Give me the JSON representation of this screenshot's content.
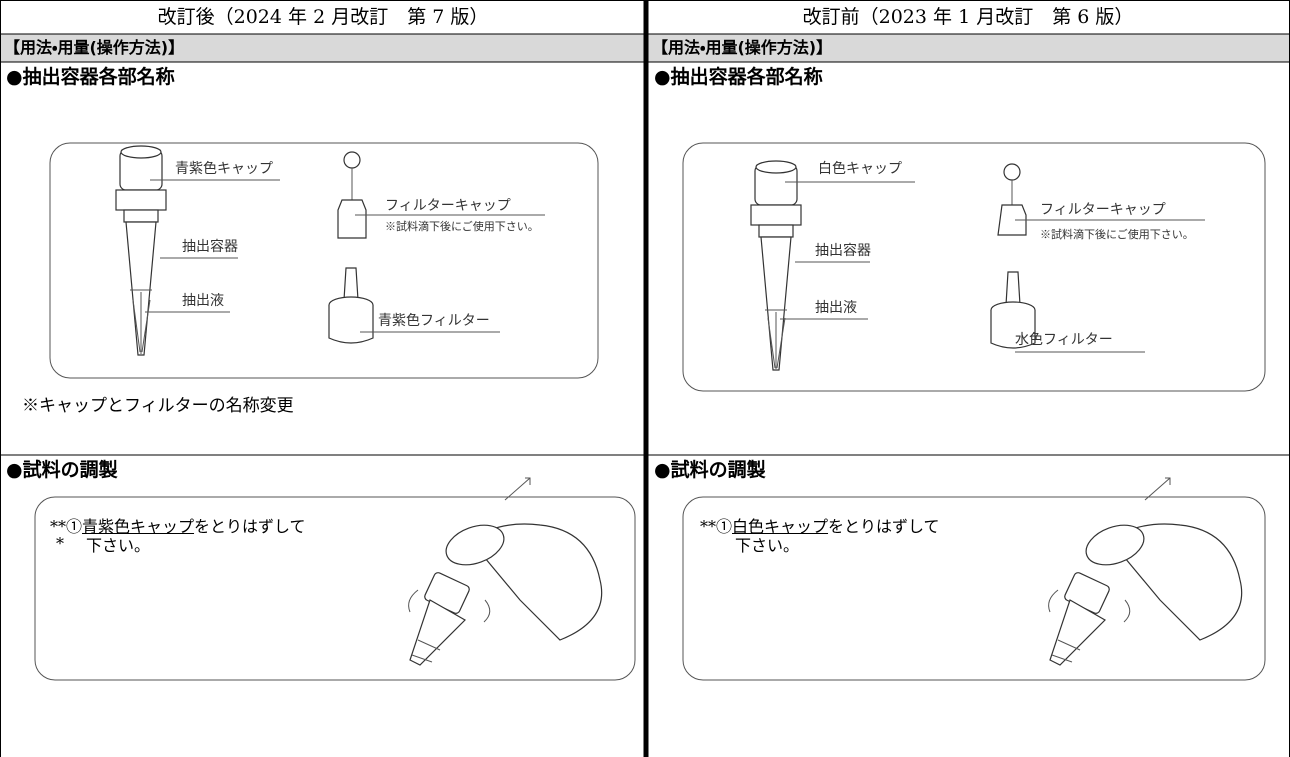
{
  "columns": [
    {
      "header": "改訂後（2024 年 2 月改訂　第 7 版）",
      "section": "【用法・用量(操作方法)】",
      "parts_heading": "●抽出容器各部名称",
      "parts_labels": [
        "青紫色キャップ",
        "フィルターキャップ",
        "※試料滴下後にご使用下さい。",
        "抽出容器",
        "抽出液",
        "青紫色フィルター"
      ],
      "note": "※キャップとフィルターの名称変更",
      "prep_heading": "●試料の調製",
      "step": {
        "mark": "**",
        "mark2": "*",
        "number": "①",
        "underlined": "青紫色キャップ",
        "text": "をとりはずして",
        "text2": "下さい。"
      }
    },
    {
      "header": "改訂前（2023 年 1 月改訂　第 6 版）",
      "section": "【用法・用量(操作方法)】",
      "parts_heading": "●抽出容器各部名称",
      "parts_labels": [
        "白色キャップ",
        "フィルターキャップ",
        "※試料滴下後にご使用下さい。",
        "抽出容器",
        "抽出液",
        "水色フィルター"
      ],
      "prep_heading": "●試料の調製",
      "step": {
        "mark": "**",
        "number": "①",
        "underlined": "白色キャップ",
        "text": "をとりはずして",
        "text2": "下さい。"
      }
    }
  ]
}
